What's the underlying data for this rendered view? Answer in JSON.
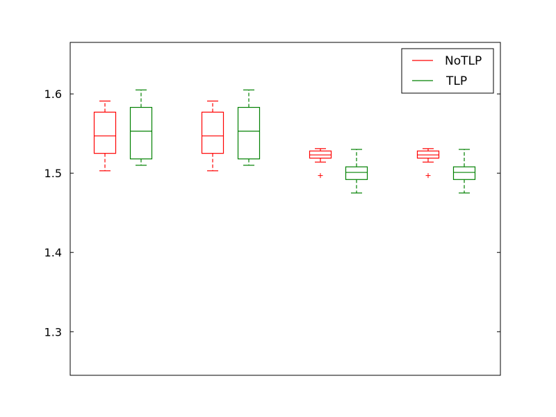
{
  "chart_data": {
    "type": "box",
    "ylim": [
      1.245,
      1.665
    ],
    "yticks": [
      1.3,
      1.4,
      1.5,
      1.6
    ],
    "ytick_labels": [
      "1.3",
      "1.4",
      "1.5",
      "1.6"
    ],
    "legend_position": "top-right",
    "grid": false,
    "series": [
      {
        "name": "NoTLP",
        "color": "#ff0000",
        "boxes": [
          {
            "whisker_low": 1.503,
            "q1": 1.525,
            "median": 1.547,
            "q3": 1.577,
            "whisker_high": 1.591,
            "outliers": []
          },
          {
            "whisker_low": 1.503,
            "q1": 1.525,
            "median": 1.547,
            "q3": 1.577,
            "whisker_high": 1.591,
            "outliers": []
          },
          {
            "whisker_low": 1.514,
            "q1": 1.519,
            "median": 1.523,
            "q3": 1.528,
            "whisker_high": 1.531,
            "outliers": [
              1.497
            ]
          },
          {
            "whisker_low": 1.514,
            "q1": 1.519,
            "median": 1.523,
            "q3": 1.528,
            "whisker_high": 1.531,
            "outliers": [
              1.497
            ]
          }
        ]
      },
      {
        "name": "TLP",
        "color": "#008000",
        "boxes": [
          {
            "whisker_low": 1.51,
            "q1": 1.518,
            "median": 1.553,
            "q3": 1.583,
            "whisker_high": 1.605,
            "outliers": []
          },
          {
            "whisker_low": 1.51,
            "q1": 1.518,
            "median": 1.553,
            "q3": 1.583,
            "whisker_high": 1.605,
            "outliers": []
          },
          {
            "whisker_low": 1.475,
            "q1": 1.492,
            "median": 1.501,
            "q3": 1.508,
            "whisker_high": 1.53,
            "outliers": []
          },
          {
            "whisker_low": 1.475,
            "q1": 1.492,
            "median": 1.501,
            "q3": 1.508,
            "whisker_high": 1.53,
            "outliers": []
          }
        ]
      }
    ]
  }
}
